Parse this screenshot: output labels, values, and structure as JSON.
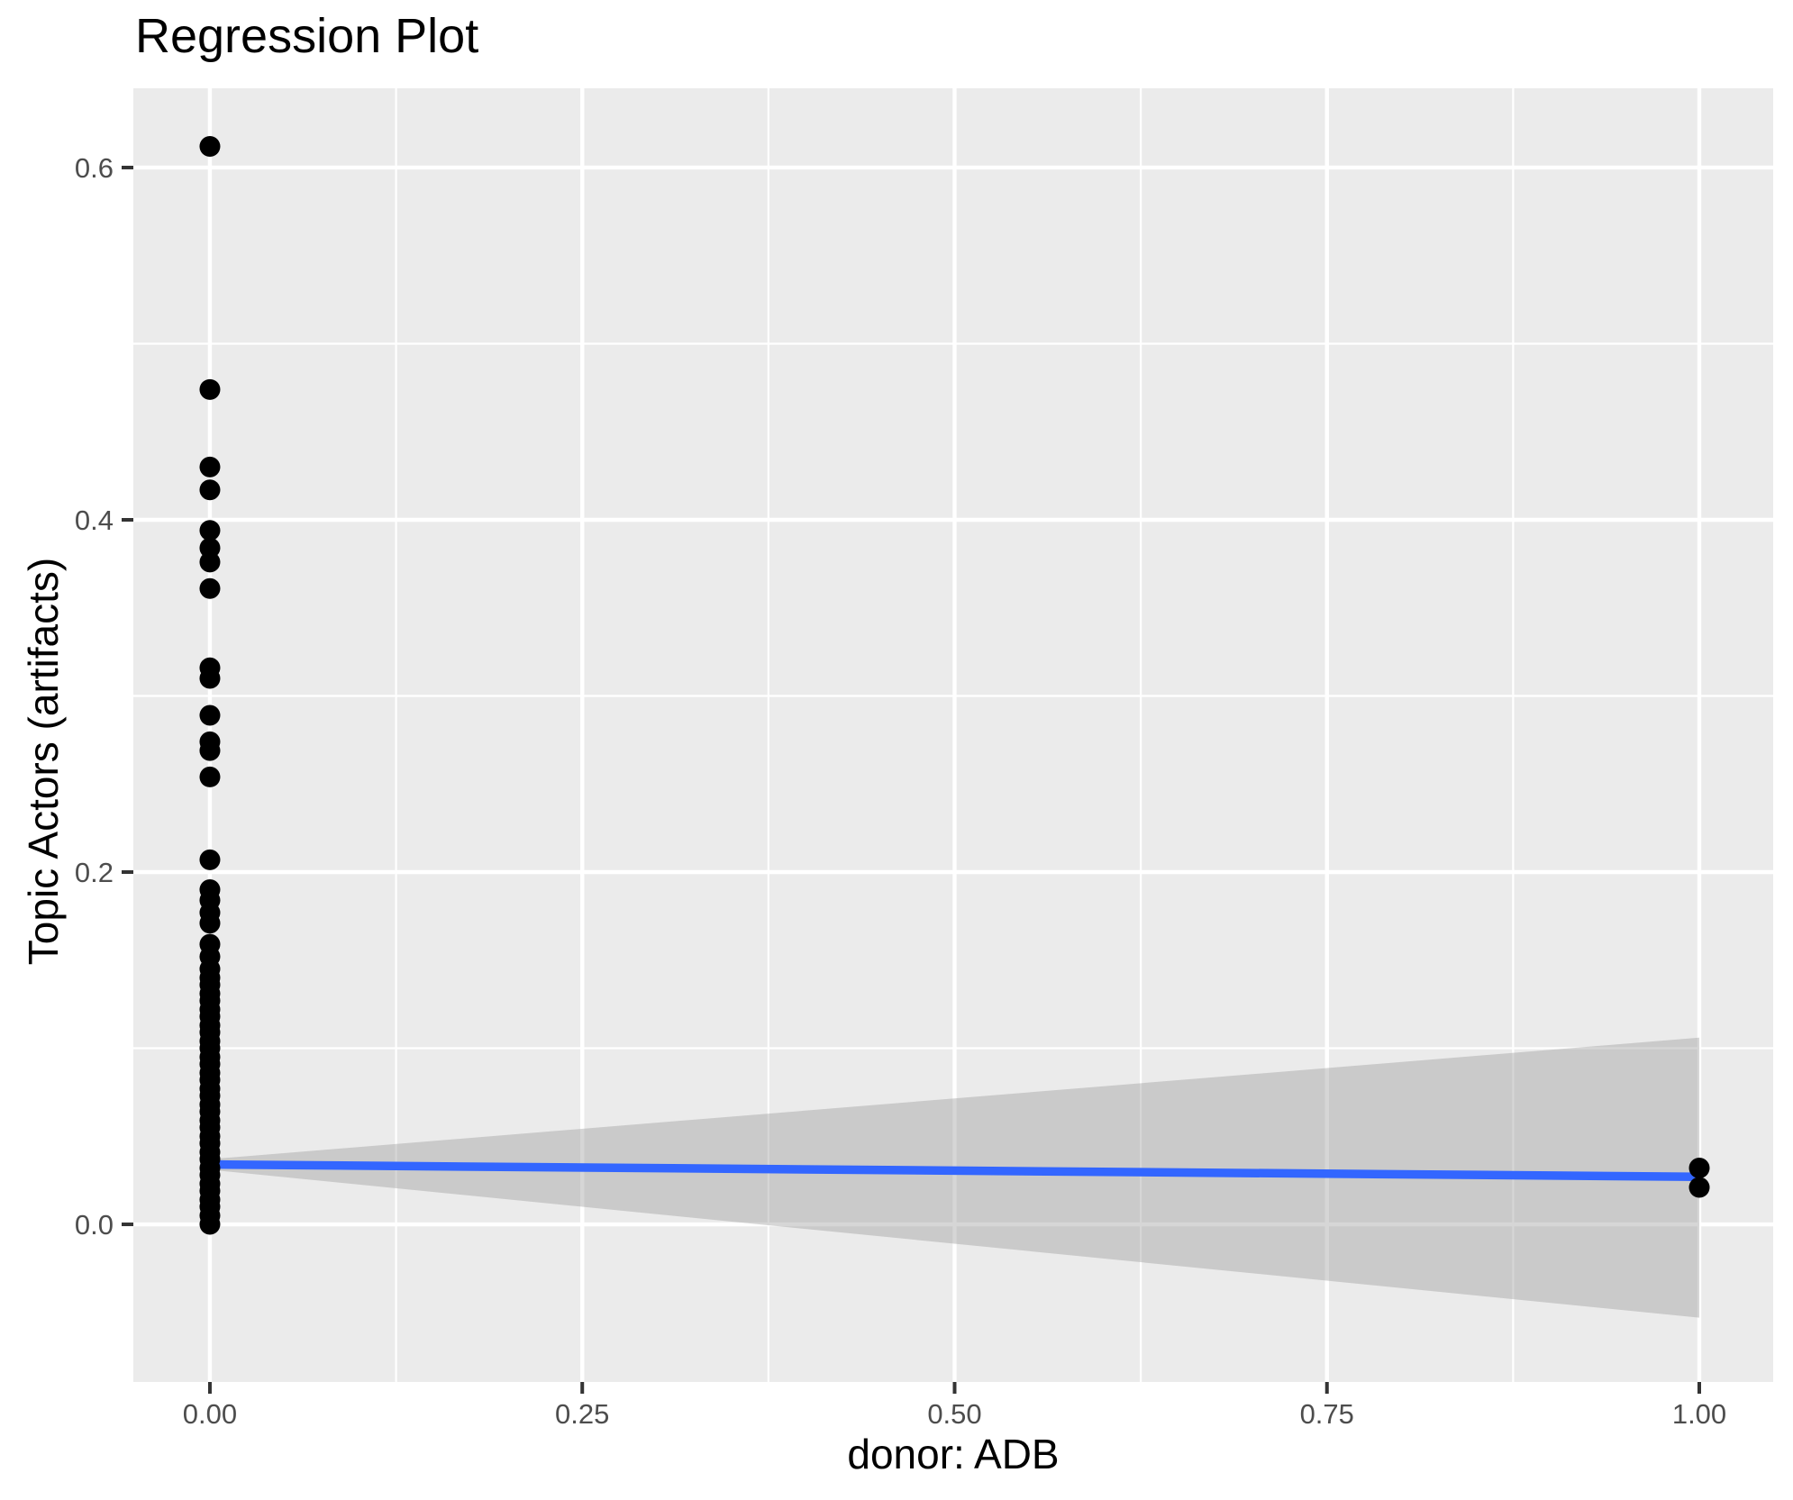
{
  "chart_data": {
    "type": "scatter",
    "title": "Regression Plot",
    "xlabel": "donor: ADB",
    "ylabel": "Topic Actors (artifacts)",
    "grid": "on",
    "legend": "none",
    "xlim": [
      -0.0514,
      1.0496
    ],
    "ylim": [
      -0.0895,
      0.645
    ],
    "x_ticks": {
      "values": [
        0,
        0.25,
        0.5,
        0.75,
        1.0
      ],
      "labels": [
        "0.00",
        "0.25",
        "0.50",
        "0.75",
        "1.00"
      ]
    },
    "y_ticks": {
      "values": [
        0,
        0.2,
        0.4,
        0.6
      ],
      "labels": [
        "0.0",
        "0.2",
        "0.4",
        "0.6"
      ]
    },
    "x_minor": [
      0.125,
      0.375,
      0.625,
      0.875
    ],
    "y_minor": [
      0.1,
      0.3,
      0.5
    ],
    "series": [
      {
        "name": "observations at donor ADB = 0",
        "x": 0,
        "y": [
          0.612,
          0.474,
          0.43,
          0.417,
          0.394,
          0.384,
          0.376,
          0.361,
          0.316,
          0.31,
          0.289,
          0.274,
          0.269,
          0.254,
          0.207,
          0.19,
          0.184,
          0.177,
          0.171,
          0.159,
          0.152,
          0.145,
          0.14,
          0.136,
          0.131,
          0.127,
          0.122,
          0.118,
          0.113,
          0.109,
          0.104,
          0.1,
          0.095,
          0.091,
          0.086,
          0.082,
          0.077,
          0.073,
          0.068,
          0.064,
          0.059,
          0.055,
          0.05,
          0.046,
          0.041,
          0.037,
          0.032,
          0.028,
          0.023,
          0.019,
          0.014,
          0.01,
          0.005,
          0.0
        ]
      },
      {
        "name": "observations at donor ADB = 1",
        "x": 1,
        "y": [
          0.032,
          0.021
        ]
      }
    ],
    "regression_line": {
      "x": [
        0,
        1
      ],
      "y": [
        0.034,
        0.027
      ]
    },
    "confidence_band": {
      "points": [
        [
          0,
          0.037
        ],
        [
          1,
          0.106
        ],
        [
          1,
          -0.053
        ],
        [
          0,
          0.031
        ]
      ]
    },
    "colors": {
      "point": "#000000",
      "line": "#3366FF",
      "panel": "#EBEBEB",
      "grid": "#FFFFFF",
      "band_fill": "#999999",
      "band_opacity": 0.4,
      "tick_label": "#4D4D4D",
      "tick_mark": "#333333",
      "text": "#000000"
    }
  }
}
